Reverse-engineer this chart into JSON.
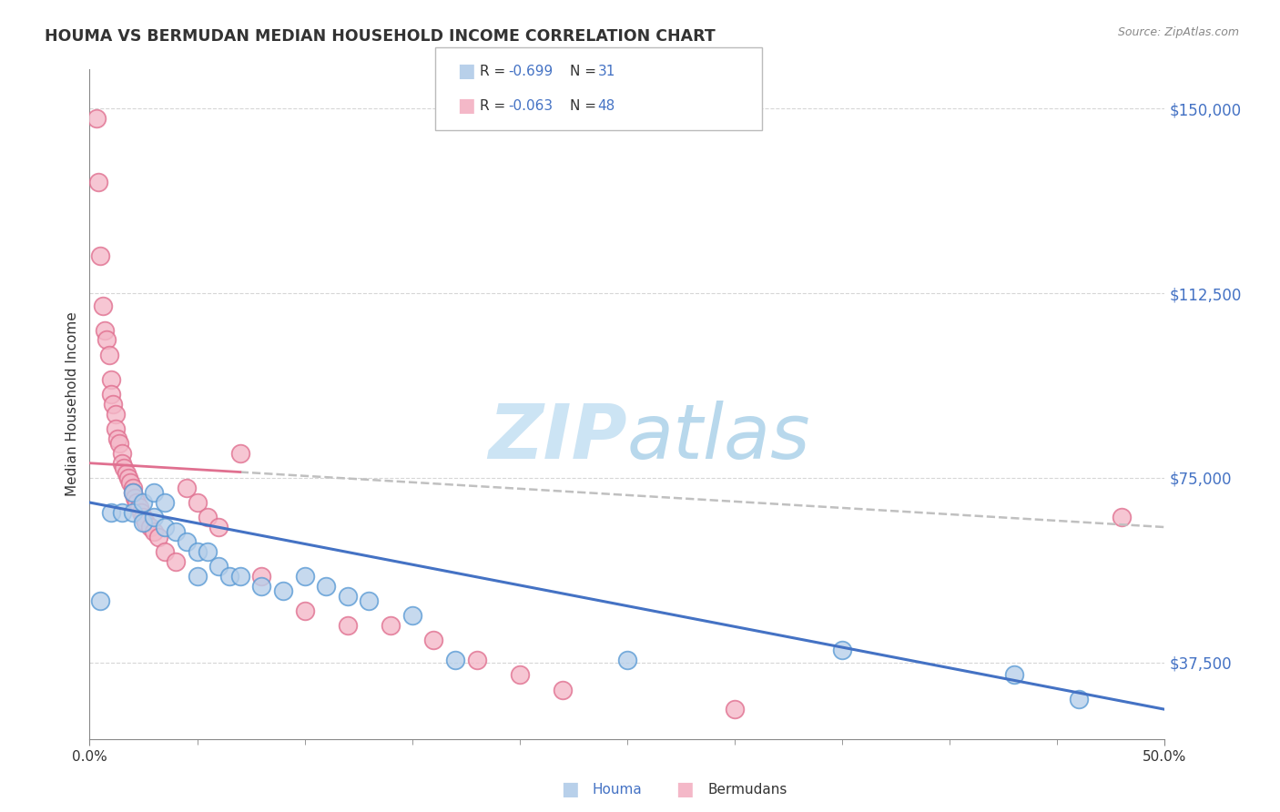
{
  "title": "HOUMA VS BERMUDAN MEDIAN HOUSEHOLD INCOME CORRELATION CHART",
  "source": "Source: ZipAtlas.com",
  "ylabel": "Median Household Income",
  "xlim": [
    0.0,
    50.0
  ],
  "ylim": [
    22000,
    158000
  ],
  "ytick_vals": [
    37500,
    75000,
    112500,
    150000
  ],
  "ytick_labels": [
    "$37,500",
    "$75,000",
    "$112,500",
    "$150,000"
  ],
  "xtick_vals": [
    0.0,
    50.0
  ],
  "xtick_labels": [
    "0.0%",
    "50.0%"
  ],
  "houma_R": -0.699,
  "houma_N": 31,
  "bermuda_R": -0.063,
  "bermuda_N": 48,
  "houma_fill": "#b8d0ea",
  "houma_edge": "#5b9bd5",
  "bermuda_fill": "#f4b8c8",
  "bermuda_edge": "#e07090",
  "houma_line": "#4472c4",
  "bermuda_line": "#e07090",
  "bermuda_dash_solid_end": 7.0,
  "houma_line_y0": 70000,
  "houma_line_y50": 28000,
  "bermuda_line_y0": 78000,
  "bermuda_line_y50": 65000,
  "watermark_color": "#cce4f4",
  "title_color": "#333333",
  "source_color": "#888888",
  "tick_color_x": "#333333",
  "tick_color_y": "#4472c4",
  "grid_color": "#cccccc",
  "legend_text_color": "#4472c4",
  "houma_x": [
    0.5,
    1.0,
    1.5,
    2.0,
    2.0,
    2.5,
    2.5,
    3.0,
    3.0,
    3.5,
    3.5,
    4.0,
    4.5,
    5.0,
    5.0,
    5.5,
    6.0,
    6.5,
    7.0,
    8.0,
    9.0,
    10.0,
    11.0,
    12.0,
    13.0,
    15.0,
    17.0,
    25.0,
    35.0,
    43.0,
    46.0
  ],
  "houma_y": [
    50000,
    68000,
    68000,
    72000,
    68000,
    70000,
    66000,
    72000,
    67000,
    70000,
    65000,
    64000,
    62000,
    60000,
    55000,
    60000,
    57000,
    55000,
    55000,
    53000,
    52000,
    55000,
    53000,
    51000,
    50000,
    47000,
    38000,
    38000,
    40000,
    35000,
    30000
  ],
  "bermuda_x": [
    0.3,
    0.4,
    0.5,
    0.6,
    0.7,
    0.8,
    0.9,
    1.0,
    1.0,
    1.1,
    1.2,
    1.2,
    1.3,
    1.4,
    1.5,
    1.5,
    1.6,
    1.7,
    1.8,
    1.9,
    2.0,
    2.0,
    2.1,
    2.2,
    2.3,
    2.4,
    2.5,
    2.6,
    2.8,
    3.0,
    3.2,
    3.5,
    4.0,
    4.5,
    5.0,
    5.5,
    6.0,
    7.0,
    8.0,
    10.0,
    12.0,
    14.0,
    16.0,
    18.0,
    20.0,
    22.0,
    30.0,
    48.0
  ],
  "bermuda_y": [
    148000,
    135000,
    120000,
    110000,
    105000,
    103000,
    100000,
    95000,
    92000,
    90000,
    88000,
    85000,
    83000,
    82000,
    80000,
    78000,
    77000,
    76000,
    75000,
    74000,
    73000,
    72000,
    71000,
    70000,
    69000,
    68000,
    67000,
    66000,
    65000,
    64000,
    63000,
    60000,
    58000,
    73000,
    70000,
    67000,
    65000,
    80000,
    55000,
    48000,
    45000,
    45000,
    42000,
    38000,
    35000,
    32000,
    28000,
    67000
  ]
}
